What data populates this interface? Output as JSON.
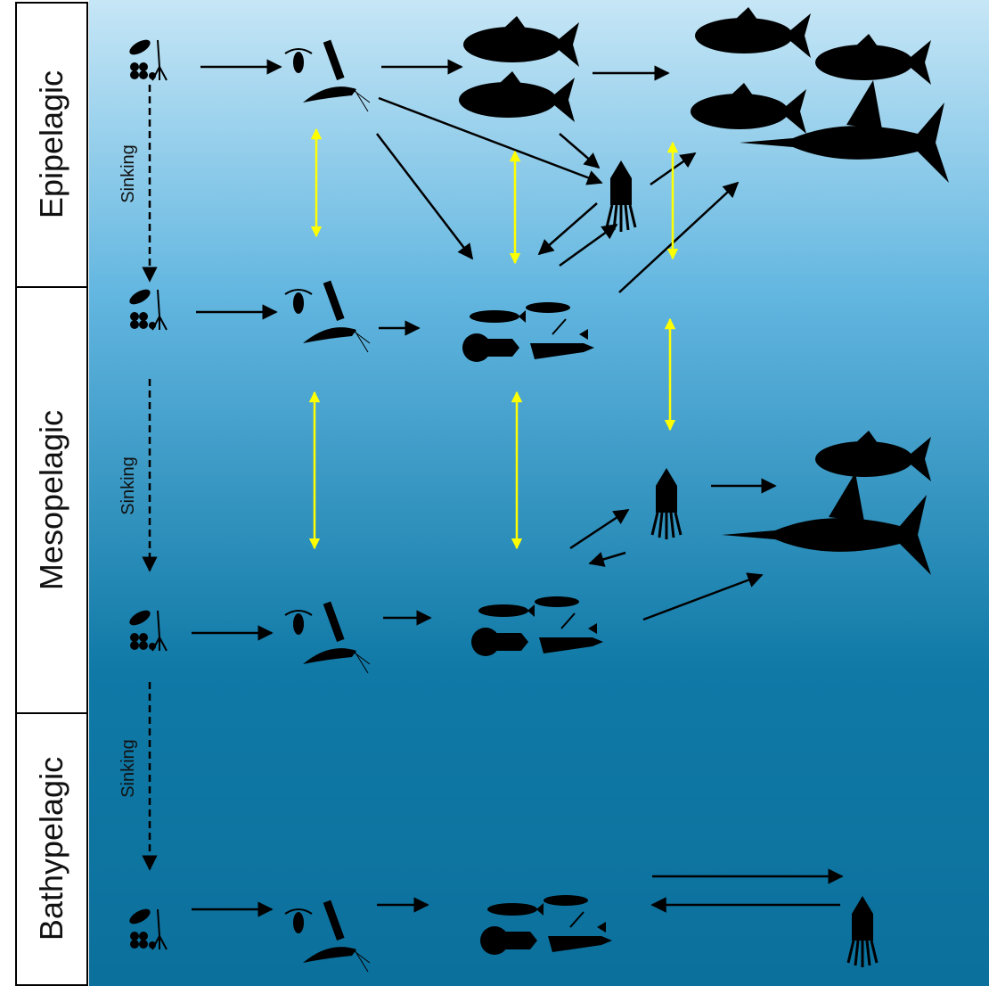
{
  "zones": [
    {
      "label": "Epipelagic"
    },
    {
      "label": "Mesopelagic"
    },
    {
      "label": "Bathypelagic"
    }
  ],
  "sinking_labels": [
    "Sinking",
    "Sinking",
    "Sinking"
  ]
}
